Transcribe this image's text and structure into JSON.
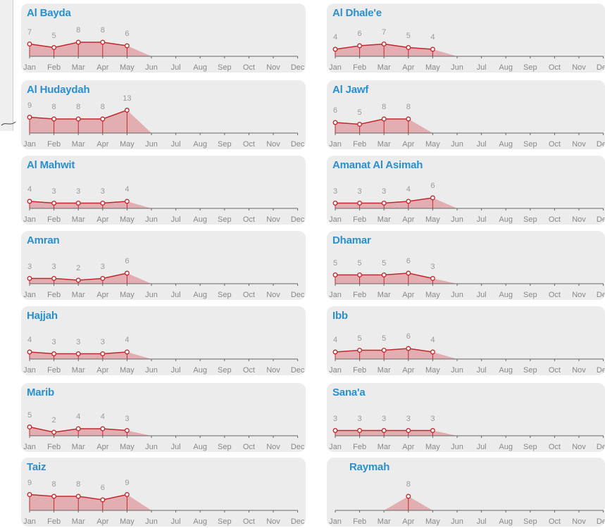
{
  "chart_data": {
    "type": "area",
    "months": [
      "Jan",
      "Feb",
      "Mar",
      "Apr",
      "May",
      "Jun",
      "Jul",
      "Aug",
      "Sep",
      "Oct",
      "Nov",
      "Dec"
    ],
    "colors": {
      "line": "#c0282d",
      "fill": "#e3aeb2",
      "point_fill": "#ffffff",
      "title": "#2a8fce",
      "axis": "#666666",
      "card_bg": "#ececec"
    },
    "panels": [
      {
        "title": "Al Bayda",
        "values": [
          7,
          5,
          8,
          8,
          6
        ],
        "start_month": 0
      },
      {
        "title": "Al Dhale'e",
        "values": [
          4,
          6,
          7,
          5,
          4
        ],
        "start_month": 0
      },
      {
        "title": "Al Hudaydah",
        "values": [
          9,
          8,
          8,
          8,
          13
        ],
        "start_month": 0
      },
      {
        "title": "Al Jawf",
        "values": [
          6,
          5,
          8,
          8
        ],
        "start_month": 0
      },
      {
        "title": "Al Mahwit",
        "values": [
          4,
          3,
          3,
          3,
          4
        ],
        "start_month": 0
      },
      {
        "title": "Amanat Al Asimah",
        "values": [
          3,
          3,
          3,
          4,
          6
        ],
        "start_month": 0
      },
      {
        "title": "Amran",
        "values": [
          3,
          3,
          2,
          3,
          6
        ],
        "start_month": 0
      },
      {
        "title": "Dhamar",
        "values": [
          5,
          5,
          5,
          6,
          3
        ],
        "start_month": 0
      },
      {
        "title": "Hajjah",
        "values": [
          4,
          3,
          3,
          3,
          4
        ],
        "start_month": 0
      },
      {
        "title": "Ibb",
        "values": [
          4,
          5,
          5,
          6,
          4
        ],
        "start_month": 0
      },
      {
        "title": "Marib",
        "values": [
          5,
          2,
          4,
          4,
          3
        ],
        "start_month": 0
      },
      {
        "title": "Sana'a",
        "values": [
          3,
          3,
          3,
          3,
          3
        ],
        "start_month": 0
      },
      {
        "title": "Taiz",
        "values": [
          9,
          8,
          8,
          6,
          9
        ],
        "start_month": 0
      },
      {
        "title": "Raymah",
        "values": [
          8
        ],
        "start_month": 3
      }
    ]
  }
}
